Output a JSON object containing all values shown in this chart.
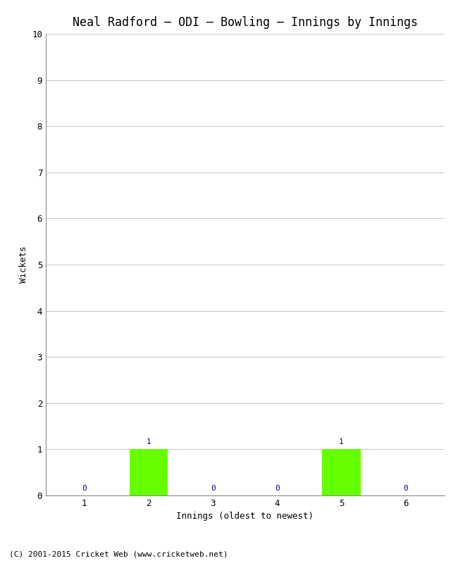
{
  "title": "Neal Radford – ODI – Bowling – Innings by Innings",
  "xlabel": "Innings (oldest to newest)",
  "ylabel": "Wickets",
  "categories": [
    1,
    2,
    3,
    4,
    5,
    6
  ],
  "values": [
    0,
    1,
    0,
    0,
    1,
    0
  ],
  "bar_color": "#66ff00",
  "label_color": "#000080",
  "ylim": [
    0,
    10
  ],
  "yticks": [
    0,
    1,
    2,
    3,
    4,
    5,
    6,
    7,
    8,
    9,
    10
  ],
  "background_color": "#ffffff",
  "grid_color": "#cccccc",
  "title_fontsize": 12,
  "axis_label_fontsize": 9,
  "tick_fontsize": 9,
  "value_label_fontsize": 8,
  "footer": "(C) 2001-2015 Cricket Web (www.cricketweb.net)",
  "footer_fontsize": 8
}
